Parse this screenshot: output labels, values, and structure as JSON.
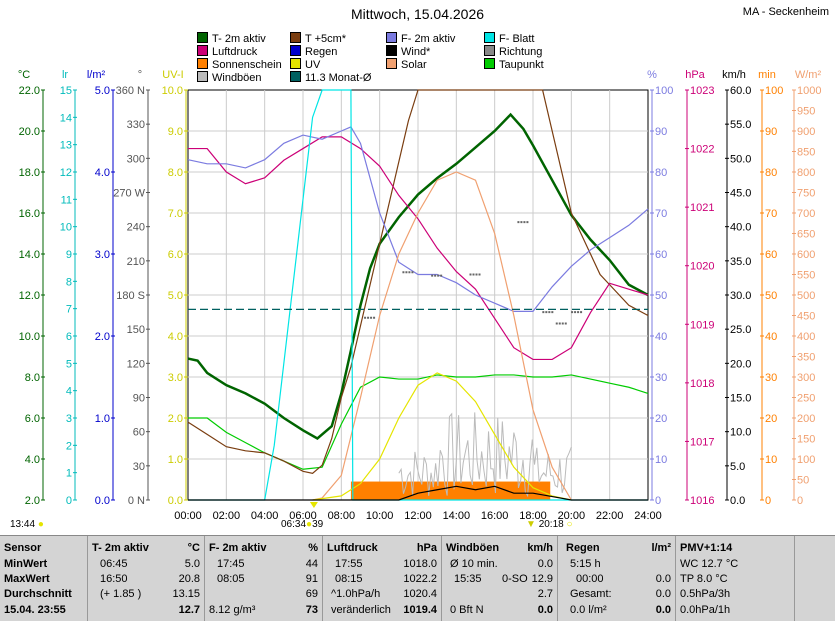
{
  "title": "Mittwoch, 15.04.2026",
  "station": "MA - Seckenheim",
  "legend": [
    {
      "label": "T- 2m aktiv",
      "color": "#006400"
    },
    {
      "label": "T +5cm*",
      "color": "#7a3d10"
    },
    {
      "label": "F- 2m aktiv",
      "color": "#7b7be0"
    },
    {
      "label": "F- Blatt",
      "color": "#00e5e5"
    },
    {
      "label": "Luftdruck",
      "color": "#cc0077"
    },
    {
      "label": "Regen",
      "color": "#0000cc"
    },
    {
      "label": "Wind*",
      "color": "#000000"
    },
    {
      "label": "Richtung",
      "color": "#888888"
    },
    {
      "label": "Sonnenschein",
      "color": "#ff8000"
    },
    {
      "label": "UV",
      "color": "#e5e500"
    },
    {
      "label": "Solar",
      "color": "#f0a070"
    },
    {
      "label": "Taupunkt",
      "color": "#00cc00"
    },
    {
      "label": "Windböen",
      "color": "#bbbbbb"
    },
    {
      "label": "11.3 Monat-Ø",
      "color": "#006060"
    }
  ],
  "sun": {
    "rise": "06:34",
    "rise_val": "39",
    "set": "20:18",
    "left_time": "13:44"
  },
  "chart_data": {
    "type": "line",
    "x_ticks": [
      "00:00",
      "02:00",
      "04:00",
      "06:00",
      "08:00",
      "10:00",
      "12:00",
      "14:00",
      "16:00",
      "18:00",
      "20:00",
      "22:00",
      "24:00"
    ],
    "axes": {
      "temp": {
        "unit": "°C",
        "ticks": [
          "22.0",
          "20.0",
          "18.0",
          "16.0",
          "14.0",
          "12.0",
          "10.0",
          "8.0",
          "6.0",
          "4.0",
          "2.0"
        ],
        "color": "#006400",
        "range": [
          2,
          22
        ]
      },
      "lr": {
        "unit": "lr",
        "ticks": [
          "15",
          "14",
          "13",
          "12",
          "11",
          "10",
          "9",
          "8",
          "7",
          "6",
          "5",
          "4",
          "3",
          "2",
          "1",
          "0"
        ],
        "color": "#00bbbb"
      },
      "rain": {
        "unit": "l/m²",
        "ticks": [
          "5.0",
          "4.0",
          "3.0",
          "2.0",
          "1.0",
          "0.0"
        ],
        "color": "#0000cc"
      },
      "dir": {
        "unit": "°",
        "ticks": [
          "360 N",
          "330",
          "300",
          "270 W",
          "240",
          "210",
          "180 S",
          "150",
          "120",
          "90",
          "60",
          "30",
          "0 N"
        ],
        "color": "#555555"
      },
      "uv": {
        "unit": "UV-I",
        "ticks": [
          "10.0",
          "9.0",
          "8.0",
          "7.0",
          "6.0",
          "5.0",
          "4.0",
          "3.0",
          "2.0",
          "1.0",
          "0.0"
        ],
        "color": "#cccc00"
      },
      "hum": {
        "unit": "%",
        "ticks": [
          "100",
          "90",
          "80",
          "70",
          "60",
          "50",
          "40",
          "30",
          "20",
          "10",
          "0"
        ],
        "color": "#7b7be0"
      },
      "press": {
        "unit": "hPa",
        "ticks": [
          "1023",
          "1022",
          "1021",
          "1020",
          "1019",
          "1018",
          "1017",
          "1016"
        ],
        "color": "#cc0077",
        "range": [
          1016,
          1023
        ]
      },
      "wind": {
        "unit": "km/h",
        "ticks": [
          "60.0",
          "55.0",
          "50.0",
          "45.0",
          "40.0",
          "35.0",
          "30.0",
          "25.0",
          "20.0",
          "15.0",
          "10.0",
          "5.0",
          "0.0"
        ],
        "color": "#000000"
      },
      "min": {
        "unit": "min",
        "ticks": [
          "100",
          "90",
          "80",
          "70",
          "60",
          "50",
          "40",
          "30",
          "20",
          "10",
          "0"
        ],
        "color": "#ff8000"
      },
      "solar": {
        "unit": "W/m²",
        "ticks": [
          "1000",
          "950",
          "900",
          "850",
          "800",
          "750",
          "700",
          "650",
          "600",
          "550",
          "500",
          "450",
          "400",
          "350",
          "300",
          "250",
          "200",
          "150",
          "100",
          "50",
          "0"
        ],
        "color": "#f0a070"
      }
    },
    "series": [
      {
        "name": "T- 2m aktiv",
        "axis": "temp",
        "color": "#006400",
        "x": [
          0,
          0.5,
          1,
          2,
          3,
          4,
          5,
          6,
          6.75,
          7.5,
          8,
          8.5,
          9,
          9.5,
          10,
          11,
          12,
          13,
          14,
          15,
          16,
          16.83,
          17.5,
          18,
          19,
          20,
          21,
          22,
          23,
          24
        ],
        "values": [
          8.9,
          8.8,
          8.2,
          7.6,
          7.2,
          6.7,
          6.0,
          5.4,
          5.0,
          5.6,
          7.2,
          9.3,
          11.5,
          13.3,
          14.5,
          15.8,
          16.9,
          17.7,
          18.4,
          19.2,
          20.0,
          20.8,
          20.1,
          19.3,
          17.6,
          15.9,
          14.7,
          13.7,
          12.5,
          12.0
        ]
      },
      {
        "name": "Taupunkt",
        "axis": "temp",
        "color": "#00cc00",
        "x": [
          0,
          1,
          2,
          3,
          4,
          5,
          6,
          7,
          8,
          9,
          10,
          11,
          12,
          13,
          14,
          15,
          16,
          17,
          18,
          19,
          20,
          21,
          22,
          23,
          24
        ],
        "values": [
          6.0,
          6.0,
          5.3,
          4.8,
          4.3,
          3.9,
          3.5,
          3.6,
          5.7,
          7.5,
          8.0,
          7.9,
          7.9,
          8.1,
          8.0,
          8.0,
          8.1,
          8.1,
          8.0,
          8.0,
          8.1,
          7.9,
          7.7,
          7.5,
          7.2
        ]
      },
      {
        "name": "T +5cm*",
        "axis": "temp",
        "color": "#7a3d10",
        "x": [
          0,
          1,
          2,
          3,
          4,
          5,
          6,
          6.5,
          7,
          7.5,
          8,
          8.5,
          9,
          9.5,
          10,
          10.5,
          11,
          11.5,
          12,
          18.5,
          19,
          19.5,
          20,
          20.5,
          21,
          21.5,
          22,
          23,
          24
        ],
        "values": [
          5.8,
          5.2,
          4.6,
          4.4,
          4.3,
          3.9,
          3.4,
          3.3,
          3.7,
          5.0,
          7.0,
          8.5,
          10.5,
          12.5,
          14.5,
          16.5,
          18.5,
          20.5,
          22,
          22,
          20,
          18,
          16,
          15,
          14,
          13,
          12.5,
          11.5,
          11.0
        ]
      },
      {
        "name": "Luftdruck",
        "axis": "press",
        "color": "#cc0077",
        "x": [
          0,
          1,
          2,
          3,
          4,
          5,
          6,
          7,
          8,
          9,
          10,
          11,
          12,
          13,
          14,
          15,
          16,
          17,
          18,
          19,
          20,
          21,
          22,
          23,
          24
        ],
        "values": [
          1022.0,
          1022.0,
          1021.6,
          1021.4,
          1021.5,
          1021.8,
          1022.0,
          1022.2,
          1022.2,
          1022.0,
          1021.7,
          1021.2,
          1020.8,
          1020.3,
          1019.9,
          1019.6,
          1019.1,
          1018.6,
          1018.4,
          1018.4,
          1018.6,
          1019.2,
          1019.7,
          1019.6,
          1019.5
        ]
      },
      {
        "name": "F- 2m aktiv",
        "axis": "hum",
        "color": "#7b7be0",
        "x": [
          0,
          1,
          2,
          3,
          4,
          5,
          6,
          7,
          8,
          8.5,
          9,
          10,
          11,
          12,
          13,
          14,
          15,
          16,
          17,
          18,
          19,
          20,
          21,
          22,
          23,
          24
        ],
        "values": [
          83,
          82,
          82,
          81,
          83,
          87,
          89,
          88,
          90,
          91,
          87,
          70,
          58,
          55,
          55,
          53,
          50,
          48,
          46,
          46,
          52,
          57,
          61,
          64,
          67,
          71
        ]
      },
      {
        "name": "Solar",
        "axis": "solar",
        "color": "#f0a070",
        "x": [
          6.5,
          7,
          8,
          9,
          10,
          11,
          12,
          13,
          14,
          15,
          16,
          17,
          18,
          19,
          20
        ],
        "values": [
          0,
          5,
          60,
          250,
          450,
          600,
          700,
          780,
          800,
          780,
          650,
          450,
          220,
          80,
          0
        ]
      },
      {
        "name": "UV",
        "axis": "uv",
        "color": "#e5e500",
        "x": [
          6.5,
          8,
          9,
          10,
          11,
          12,
          13,
          14,
          15,
          16,
          17,
          18,
          19,
          20
        ],
        "values": [
          0,
          0.1,
          0.4,
          1.0,
          2.0,
          2.8,
          3.1,
          2.9,
          2.4,
          1.6,
          0.8,
          0.3,
          0.1,
          0
        ]
      },
      {
        "name": "F- Blatt",
        "axis": "lr",
        "color": "#00e5e5",
        "x": [
          0,
          3,
          3.5,
          4,
          4.5,
          5,
          5.5,
          6,
          6.5,
          7,
          7.5,
          8,
          8.5,
          8.6,
          9,
          24
        ],
        "values": [
          0,
          0,
          0,
          0,
          2,
          5,
          8,
          11,
          14,
          15,
          15,
          15,
          15,
          0,
          0,
          0
        ]
      },
      {
        "name": "11.3 Monat-Ø",
        "axis": "temp",
        "color": "#006060",
        "x": [
          0,
          24
        ],
        "values": [
          11.3,
          11.3
        ]
      },
      {
        "name": "Wind*",
        "axis": "wind",
        "color": "#000000",
        "x": [
          0,
          11,
          12,
          13,
          14,
          15,
          16,
          17,
          18,
          19,
          20,
          24
        ],
        "values": [
          0,
          0,
          1,
          1.5,
          2,
          1.5,
          2,
          1,
          1,
          0.5,
          0,
          0
        ]
      }
    ],
    "sunshine": {
      "x": [
        8.5,
        18.9
      ],
      "value_min": "bars"
    }
  },
  "table": {
    "sensor": {
      "h": "Sensor",
      "r1": "MinWert",
      "r2": "MaxWert",
      "r3": "Durchschnitt",
      "r4": "15.04. 23:55"
    },
    "t2m": {
      "h": "T- 2m aktiv",
      "u": "°C",
      "min_t": "06:45",
      "min_v": "5.0",
      "max_t": "16:50",
      "max_v": "20.8",
      "avg_n": "(+ 1.85 )",
      "avg_v": "13.15",
      "cur": "12.7"
    },
    "f2m": {
      "h": "F- 2m aktiv",
      "u": "%",
      "min_t": "17:45",
      "min_v": "44",
      "max_t": "08:05",
      "max_v": "91",
      "avg_v": "69",
      "abs": "8.12 g/m³",
      "cur": "73"
    },
    "press": {
      "h": "Luftdruck",
      "u": "hPa",
      "min_t": "17:55",
      "min_v": "1018.0",
      "max_t": "08:15",
      "max_v": "1022.2",
      "avg_l": "^1.0hPa/h",
      "avg_v": "1020.4",
      "trend": "veränderlich",
      "cur": "1019.4"
    },
    "wind": {
      "h": "Windböen",
      "u": "km/h",
      "r1l": "Ø 10 min.",
      "r1v": "0.0",
      "r2l": "15:35",
      "r2m": "0-SO",
      "r2v": "12.9",
      "r3v": "2.7",
      "r4l": "0 Bft N",
      "cur": "0.0"
    },
    "rain": {
      "h": "Regen",
      "u": "l/m²",
      "r1l": "5:15 h",
      "r2l": "00:00",
      "r2v": "0.0",
      "r3l": "Gesamt:",
      "r3v": "0.0",
      "r4l": "0.0 l/m²",
      "cur": "0.0"
    },
    "pmv": {
      "h": "PMV+1:14",
      "r1": "WC 12.7 °C",
      "r2": "TP 8.0 °C",
      "r3": "0.5hPa/3h",
      "r4": "0.0hPa/1h"
    }
  }
}
